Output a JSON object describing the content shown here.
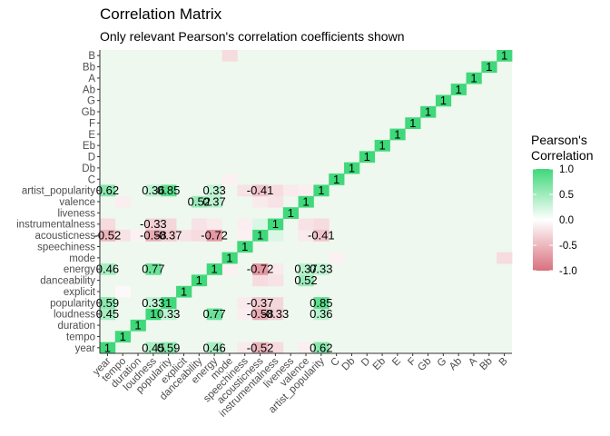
{
  "chart_data": {
    "type": "heatmap",
    "title": "Correlation Matrix",
    "subtitle": "Only relevant Pearson's correlation coefficients shown",
    "legend": {
      "title_line1": "Pearson's",
      "title_line2": "Correlation",
      "ticks": [
        "1.0",
        "0.5",
        "0.0",
        "-0.5",
        "-1.0"
      ],
      "tick_values": [
        1.0,
        0.5,
        0.0,
        -0.5,
        -1.0
      ],
      "position": "right"
    },
    "scale": {
      "min": -1,
      "mid": 0,
      "max": 1,
      "low_color": "#d9707e",
      "mid_color": "#ffffff",
      "high_color": "#3fd87a"
    },
    "panel_background": "#eef8ee",
    "variables": [
      "year",
      "tempo",
      "duration",
      "loudness",
      "popularity",
      "explicit",
      "danceability",
      "energy",
      "mode",
      "speechiness",
      "acousticness",
      "instrumentalness",
      "liveness",
      "valence",
      "artist_popularity",
      "C",
      "Db",
      "D",
      "Eb",
      "E",
      "F",
      "Gb",
      "G",
      "Ab",
      "A",
      "Bb",
      "B"
    ],
    "x_tick_labels": [
      "year",
      "tempo",
      "duration",
      "loudness",
      "popularity",
      "explicit",
      "danceability",
      "energy",
      "mode",
      "speechiness",
      "acousticness",
      "instrumentalness",
      "liveness",
      "valence",
      "artist_popularity",
      "C",
      "Db",
      "D",
      "Eb",
      "E",
      "F",
      "Gb",
      "G",
      "Ab",
      "A",
      "Bb",
      "B"
    ],
    "y_tick_labels": [
      "year",
      "tempo",
      "duration",
      "loudness",
      "popularity",
      "explicit",
      "danceability",
      "energy",
      "mode",
      "speechiness",
      "acousticness",
      "instrumentalness",
      "liveness",
      "valence",
      "artist_popularity",
      "C",
      "Db",
      "D",
      "Eb",
      "E",
      "F",
      "Gb",
      "G",
      "Ab",
      "A",
      "Bb",
      "B"
    ],
    "labeled_cells": [
      {
        "row": "year",
        "col": "year",
        "value": 1,
        "label": "1"
      },
      {
        "row": "year",
        "col": "loudness",
        "value": 0.45,
        "label": "0.45"
      },
      {
        "row": "year",
        "col": "popularity",
        "value": 0.59,
        "label": "0.59"
      },
      {
        "row": "year",
        "col": "energy",
        "value": 0.46,
        "label": "0.46"
      },
      {
        "row": "year",
        "col": "acousticness",
        "value": -0.52,
        "label": "-0.52"
      },
      {
        "row": "year",
        "col": "artist_popularity",
        "value": 0.62,
        "label": "0.62"
      },
      {
        "row": "tempo",
        "col": "tempo",
        "value": 1,
        "label": "1"
      },
      {
        "row": "duration",
        "col": "duration",
        "value": 1,
        "label": "1"
      },
      {
        "row": "loudness",
        "col": "year",
        "value": 0.45,
        "label": "0.45"
      },
      {
        "row": "loudness",
        "col": "loudness",
        "value": 1,
        "label": "1"
      },
      {
        "row": "loudness",
        "col": "popularity",
        "value": 0.33,
        "label": "0.33"
      },
      {
        "row": "loudness",
        "col": "energy",
        "value": 0.77,
        "label": "0.77"
      },
      {
        "row": "loudness",
        "col": "acousticness",
        "value": -0.58,
        "label": "-0.58"
      },
      {
        "row": "loudness",
        "col": "instrumentalness",
        "value": -0.33,
        "label": "-0.33"
      },
      {
        "row": "loudness",
        "col": "artist_popularity",
        "value": 0.36,
        "label": "0.36"
      },
      {
        "row": "popularity",
        "col": "year",
        "value": 0.59,
        "label": "0.59"
      },
      {
        "row": "popularity",
        "col": "loudness",
        "value": 0.33,
        "label": "0.33"
      },
      {
        "row": "popularity",
        "col": "popularity",
        "value": 1,
        "label": "1"
      },
      {
        "row": "popularity",
        "col": "acousticness",
        "value": -0.37,
        "label": "-0.37"
      },
      {
        "row": "popularity",
        "col": "artist_popularity",
        "value": 0.85,
        "label": "0.85"
      },
      {
        "row": "explicit",
        "col": "explicit",
        "value": 1,
        "label": "1"
      },
      {
        "row": "danceability",
        "col": "danceability",
        "value": 1,
        "label": "1"
      },
      {
        "row": "danceability",
        "col": "valence",
        "value": 0.52,
        "label": "0.52"
      },
      {
        "row": "energy",
        "col": "year",
        "value": 0.46,
        "label": "0.46"
      },
      {
        "row": "energy",
        "col": "loudness",
        "value": 0.77,
        "label": "0.77"
      },
      {
        "row": "energy",
        "col": "energy",
        "value": 1,
        "label": "1"
      },
      {
        "row": "energy",
        "col": "acousticness",
        "value": -0.72,
        "label": "-0.72"
      },
      {
        "row": "energy",
        "col": "valence",
        "value": 0.37,
        "label": "0.37"
      },
      {
        "row": "energy",
        "col": "artist_popularity",
        "value": 0.33,
        "label": "0.33"
      },
      {
        "row": "mode",
        "col": "mode",
        "value": 1,
        "label": "1"
      },
      {
        "row": "speechiness",
        "col": "speechiness",
        "value": 1,
        "label": "1"
      },
      {
        "row": "acousticness",
        "col": "year",
        "value": -0.52,
        "label": "-0.52"
      },
      {
        "row": "acousticness",
        "col": "loudness",
        "value": -0.58,
        "label": "-0.58"
      },
      {
        "row": "acousticness",
        "col": "popularity",
        "value": -0.37,
        "label": "-0.37"
      },
      {
        "row": "acousticness",
        "col": "energy",
        "value": -0.72,
        "label": "-0.72"
      },
      {
        "row": "acousticness",
        "col": "acousticness",
        "value": 1,
        "label": "1"
      },
      {
        "row": "acousticness",
        "col": "artist_popularity",
        "value": -0.41,
        "label": "-0.41"
      },
      {
        "row": "instrumentalness",
        "col": "loudness",
        "value": -0.33,
        "label": "-0.33"
      },
      {
        "row": "instrumentalness",
        "col": "instrumentalness",
        "value": 1,
        "label": "1"
      },
      {
        "row": "liveness",
        "col": "liveness",
        "value": 1,
        "label": "1"
      },
      {
        "row": "valence",
        "col": "danceability",
        "value": 0.52,
        "label": "0.52"
      },
      {
        "row": "valence",
        "col": "energy",
        "value": 0.37,
        "label": "0.37"
      },
      {
        "row": "valence",
        "col": "valence",
        "value": 1,
        "label": "1"
      },
      {
        "row": "artist_popularity",
        "col": "year",
        "value": 0.62,
        "label": "0.62"
      },
      {
        "row": "artist_popularity",
        "col": "loudness",
        "value": 0.36,
        "label": "0.36"
      },
      {
        "row": "artist_popularity",
        "col": "popularity",
        "value": 0.85,
        "label": "0.85"
      },
      {
        "row": "artist_popularity",
        "col": "energy",
        "value": 0.33,
        "label": "0.33"
      },
      {
        "row": "artist_popularity",
        "col": "acousticness",
        "value": -0.41,
        "label": "-0.41"
      },
      {
        "row": "artist_popularity",
        "col": "artist_popularity",
        "value": 1,
        "label": "1"
      },
      {
        "row": "C",
        "col": "C",
        "value": 1,
        "label": "1"
      },
      {
        "row": "Db",
        "col": "Db",
        "value": 1,
        "label": "1"
      },
      {
        "row": "D",
        "col": "D",
        "value": 1,
        "label": "1"
      },
      {
        "row": "Eb",
        "col": "Eb",
        "value": 1,
        "label": "1"
      },
      {
        "row": "E",
        "col": "E",
        "value": 1,
        "label": "1"
      },
      {
        "row": "F",
        "col": "F",
        "value": 1,
        "label": "1"
      },
      {
        "row": "Gb",
        "col": "Gb",
        "value": 1,
        "label": "1"
      },
      {
        "row": "G",
        "col": "G",
        "value": 1,
        "label": "1"
      },
      {
        "row": "Ab",
        "col": "Ab",
        "value": 1,
        "label": "1"
      },
      {
        "row": "A",
        "col": "A",
        "value": 1,
        "label": "1"
      },
      {
        "row": "Bb",
        "col": "Bb",
        "value": 1,
        "label": "1"
      },
      {
        "row": "B",
        "col": "B",
        "value": 1,
        "label": "1"
      }
    ],
    "approximate_unlabeled_cells": [
      {
        "row": "acousticness",
        "col": "tempo",
        "value": -0.2
      },
      {
        "row": "acousticness",
        "col": "duration",
        "value": -0.1
      },
      {
        "row": "acousticness",
        "col": "explicit",
        "value": -0.2
      },
      {
        "row": "acousticness",
        "col": "danceability",
        "value": -0.25
      },
      {
        "row": "acousticness",
        "col": "speechiness",
        "value": -0.1
      },
      {
        "row": "acousticness",
        "col": "instrumentalness",
        "value": 0.2
      },
      {
        "row": "acousticness",
        "col": "valence",
        "value": -0.15
      },
      {
        "row": "instrumentalness",
        "col": "year",
        "value": -0.25
      },
      {
        "row": "instrumentalness",
        "col": "popularity",
        "value": -0.28
      },
      {
        "row": "instrumentalness",
        "col": "danceability",
        "value": -0.2
      },
      {
        "row": "instrumentalness",
        "col": "energy",
        "value": -0.15
      },
      {
        "row": "instrumentalness",
        "col": "speechiness",
        "value": -0.12
      },
      {
        "row": "instrumentalness",
        "col": "acousticness",
        "value": 0.2
      },
      {
        "row": "instrumentalness",
        "col": "valence",
        "value": -0.2
      },
      {
        "row": "instrumentalness",
        "col": "artist_popularity",
        "value": -0.25
      },
      {
        "row": "artist_popularity",
        "col": "instrumentalness",
        "value": -0.25
      },
      {
        "row": "artist_popularity",
        "col": "speechiness",
        "value": -0.2
      },
      {
        "row": "artist_popularity",
        "col": "liveness",
        "value": -0.15
      },
      {
        "row": "artist_popularity",
        "col": "valence",
        "value": -0.12
      },
      {
        "row": "valence",
        "col": "instrumentalness",
        "value": -0.2
      },
      {
        "row": "valence",
        "col": "acousticness",
        "value": -0.15
      },
      {
        "row": "valence",
        "col": "tempo",
        "value": -0.12
      },
      {
        "row": "energy",
        "col": "instrumentalness",
        "value": -0.15
      },
      {
        "row": "energy",
        "col": "mode",
        "value": -0.1
      },
      {
        "row": "popularity",
        "col": "instrumentalness",
        "value": -0.28
      },
      {
        "row": "popularity",
        "col": "speechiness",
        "value": -0.15
      },
      {
        "row": "loudness",
        "col": "speechiness",
        "value": -0.12
      },
      {
        "row": "year",
        "col": "instrumentalness",
        "value": -0.25
      },
      {
        "row": "year",
        "col": "speechiness",
        "value": -0.15
      },
      {
        "row": "year",
        "col": "valence",
        "value": -0.12
      },
      {
        "row": "danceability",
        "col": "acousticness",
        "value": -0.25
      },
      {
        "row": "danceability",
        "col": "instrumentalness",
        "value": -0.2
      },
      {
        "row": "mode",
        "col": "C",
        "value": -0.1
      },
      {
        "row": "mode",
        "col": "B",
        "value": -0.25
      },
      {
        "row": "B",
        "col": "mode",
        "value": -0.25
      },
      {
        "row": "C",
        "col": "mode",
        "value": -0.1
      },
      {
        "row": "explicit",
        "col": "tempo",
        "value": -0.05
      }
    ]
  }
}
